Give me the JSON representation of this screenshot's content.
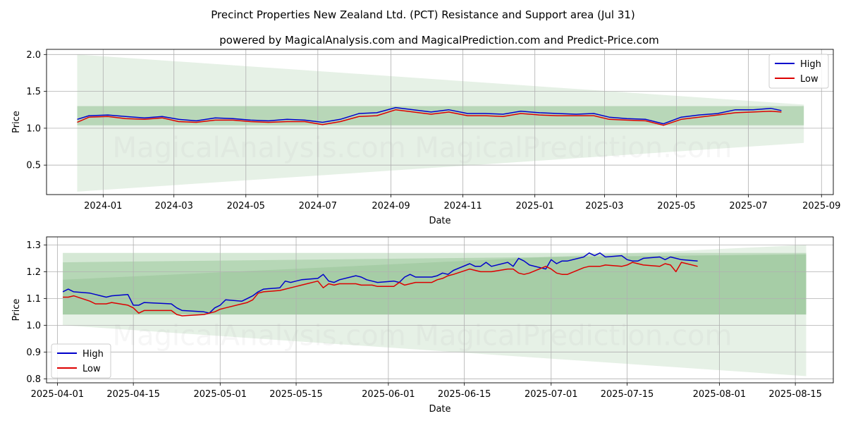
{
  "title": "Precinct Properties New Zealand Ltd. (PCT) Resistance and Support area (Jul 31)",
  "subtitle": "powered by MagicalAnalysis.com and MagicalPrediction.com and Predict-Price.com",
  "watermark": "MagicalAnalysis.com   MagicalPrediction.com",
  "colors": {
    "high": "#0000cc",
    "low": "#dd0000",
    "band": "#2e8b2e"
  },
  "chart_data": [
    {
      "type": "line",
      "xlabel": "Date",
      "ylabel": "Price",
      "ylim": [
        0.1,
        2.07
      ],
      "xlim": [
        "2023-11-14",
        "2025-09-11"
      ],
      "yticks": [
        "0.5",
        "1.0",
        "1.5",
        "2.0"
      ],
      "ytick_values": [
        0.5,
        1.0,
        1.5,
        2.0
      ],
      "xticks": [
        "2024-01",
        "2024-03",
        "2024-05",
        "2024-07",
        "2024-09",
        "2024-11",
        "2025-01",
        "2025-03",
        "2025-05",
        "2025-07",
        "2025-09"
      ],
      "xtick_dates": [
        "2024-01-01",
        "2024-03-01",
        "2024-05-01",
        "2024-07-01",
        "2024-09-01",
        "2024-11-01",
        "2025-01-01",
        "2025-03-01",
        "2025-05-01",
        "2025-07-01",
        "2025-09-01"
      ],
      "legend": "top-right",
      "grid": true,
      "bands": [
        {
          "x": [
            "2023-12-10",
            "2025-08-17"
          ],
          "upper": [
            2.0,
            1.32
          ],
          "lower": [
            0.14,
            0.8
          ],
          "opacity": 0.12
        },
        {
          "x": [
            "2023-12-10",
            "2025-08-17"
          ],
          "upper": [
            1.3,
            1.3
          ],
          "lower": [
            1.04,
            1.04
          ],
          "opacity": 0.25
        }
      ],
      "series": [
        {
          "name": "High",
          "x": [
            "2023-12-10",
            "2023-12-20",
            "2024-01-05",
            "2024-01-20",
            "2024-02-05",
            "2024-02-20",
            "2024-03-05",
            "2024-03-20",
            "2024-04-05",
            "2024-04-20",
            "2024-05-05",
            "2024-05-20",
            "2024-06-05",
            "2024-06-20",
            "2024-07-05",
            "2024-07-20",
            "2024-08-05",
            "2024-08-20",
            "2024-09-05",
            "2024-09-20",
            "2024-10-05",
            "2024-10-20",
            "2024-11-05",
            "2024-11-20",
            "2024-12-05",
            "2024-12-20",
            "2025-01-05",
            "2025-01-20",
            "2025-02-05",
            "2025-02-20",
            "2025-03-05",
            "2025-03-20",
            "2025-04-05",
            "2025-04-20",
            "2025-05-05",
            "2025-05-20",
            "2025-06-05",
            "2025-06-20",
            "2025-07-05",
            "2025-07-20",
            "2025-07-29"
          ],
          "values": [
            1.12,
            1.17,
            1.18,
            1.16,
            1.14,
            1.16,
            1.12,
            1.1,
            1.14,
            1.13,
            1.11,
            1.1,
            1.12,
            1.11,
            1.08,
            1.12,
            1.2,
            1.21,
            1.28,
            1.25,
            1.22,
            1.25,
            1.2,
            1.2,
            1.19,
            1.23,
            1.21,
            1.2,
            1.19,
            1.2,
            1.15,
            1.13,
            1.12,
            1.06,
            1.15,
            1.18,
            1.2,
            1.25,
            1.25,
            1.27,
            1.24
          ]
        },
        {
          "name": "Low",
          "x": [
            "2023-12-10",
            "2023-12-20",
            "2024-01-05",
            "2024-01-20",
            "2024-02-05",
            "2024-02-20",
            "2024-03-05",
            "2024-03-20",
            "2024-04-05",
            "2024-04-20",
            "2024-05-05",
            "2024-05-20",
            "2024-06-05",
            "2024-06-20",
            "2024-07-05",
            "2024-07-20",
            "2024-08-05",
            "2024-08-20",
            "2024-09-05",
            "2024-09-20",
            "2024-10-05",
            "2024-10-20",
            "2024-11-05",
            "2024-11-20",
            "2024-12-05",
            "2024-12-20",
            "2025-01-05",
            "2025-01-20",
            "2025-02-05",
            "2025-02-20",
            "2025-03-05",
            "2025-03-20",
            "2025-04-05",
            "2025-04-20",
            "2025-05-05",
            "2025-05-20",
            "2025-06-05",
            "2025-06-20",
            "2025-07-05",
            "2025-07-20",
            "2025-07-29"
          ],
          "values": [
            1.08,
            1.15,
            1.16,
            1.13,
            1.12,
            1.14,
            1.09,
            1.08,
            1.11,
            1.11,
            1.09,
            1.08,
            1.09,
            1.09,
            1.05,
            1.09,
            1.16,
            1.17,
            1.25,
            1.22,
            1.19,
            1.22,
            1.17,
            1.17,
            1.16,
            1.2,
            1.18,
            1.17,
            1.17,
            1.17,
            1.12,
            1.11,
            1.1,
            1.04,
            1.12,
            1.15,
            1.18,
            1.21,
            1.22,
            1.23,
            1.22
          ]
        }
      ]
    },
    {
      "type": "line",
      "xlabel": "Date",
      "ylabel": "Price",
      "ylim": [
        0.785,
        1.33
      ],
      "xlim": [
        "2025-03-30",
        "2025-08-22"
      ],
      "yticks": [
        "0.8",
        "0.9",
        "1.0",
        "1.1",
        "1.2",
        "1.3"
      ],
      "ytick_values": [
        0.8,
        0.9,
        1.0,
        1.1,
        1.2,
        1.3
      ],
      "xticks": [
        "2025-04-01",
        "2025-04-15",
        "2025-05-01",
        "2025-05-15",
        "2025-06-01",
        "2025-06-15",
        "2025-07-01",
        "2025-07-15",
        "2025-08-01",
        "2025-08-15"
      ],
      "xtick_dates": [
        "2025-04-01",
        "2025-04-15",
        "2025-05-01",
        "2025-05-15",
        "2025-06-01",
        "2025-06-15",
        "2025-07-01",
        "2025-07-15",
        "2025-08-01",
        "2025-08-15"
      ],
      "legend": "bottom-left",
      "grid": true,
      "bands": [
        {
          "x": [
            "2025-04-02",
            "2025-08-17"
          ],
          "upper": [
            1.17,
            1.3
          ],
          "lower": [
            1.0,
            0.81
          ],
          "opacity": 0.12
        },
        {
          "x": [
            "2025-04-02",
            "2025-08-17"
          ],
          "upper": [
            1.27,
            1.27
          ],
          "lower": [
            1.04,
            1.04
          ],
          "opacity": 0.2
        },
        {
          "x": [
            "2025-04-02",
            "2025-08-17"
          ],
          "upper": [
            1.235,
            1.265
          ],
          "lower": [
            1.04,
            1.04
          ],
          "opacity": 0.18
        }
      ],
      "series": [
        {
          "name": "High",
          "x": [
            "2025-04-02",
            "2025-04-03",
            "2025-04-04",
            "2025-04-07",
            "2025-04-08",
            "2025-04-09",
            "2025-04-10",
            "2025-04-11",
            "2025-04-14",
            "2025-04-15",
            "2025-04-16",
            "2025-04-17",
            "2025-04-22",
            "2025-04-23",
            "2025-04-24",
            "2025-04-28",
            "2025-04-29",
            "2025-04-30",
            "2025-05-01",
            "2025-05-02",
            "2025-05-05",
            "2025-05-06",
            "2025-05-07",
            "2025-05-08",
            "2025-05-09",
            "2025-05-12",
            "2025-05-13",
            "2025-05-14",
            "2025-05-15",
            "2025-05-16",
            "2025-05-19",
            "2025-05-20",
            "2025-05-21",
            "2025-05-22",
            "2025-05-23",
            "2025-05-26",
            "2025-05-27",
            "2025-05-28",
            "2025-05-29",
            "2025-05-30",
            "2025-06-02",
            "2025-06-03",
            "2025-06-04",
            "2025-06-05",
            "2025-06-06",
            "2025-06-09",
            "2025-06-10",
            "2025-06-11",
            "2025-06-12",
            "2025-06-13",
            "2025-06-16",
            "2025-06-17",
            "2025-06-18",
            "2025-06-19",
            "2025-06-20",
            "2025-06-23",
            "2025-06-24",
            "2025-06-25",
            "2025-06-26",
            "2025-06-27",
            "2025-06-30",
            "2025-07-01",
            "2025-07-02",
            "2025-07-03",
            "2025-07-04",
            "2025-07-07",
            "2025-07-08",
            "2025-07-09",
            "2025-07-10",
            "2025-07-11",
            "2025-07-14",
            "2025-07-15",
            "2025-07-16",
            "2025-07-17",
            "2025-07-18",
            "2025-07-21",
            "2025-07-22",
            "2025-07-23",
            "2025-07-24",
            "2025-07-25",
            "2025-07-28"
          ],
          "values": [
            1.125,
            1.135,
            1.125,
            1.12,
            1.115,
            1.11,
            1.105,
            1.11,
            1.115,
            1.075,
            1.075,
            1.085,
            1.08,
            1.065,
            1.055,
            1.05,
            1.045,
            1.065,
            1.075,
            1.095,
            1.09,
            1.1,
            1.11,
            1.125,
            1.135,
            1.14,
            1.165,
            1.16,
            1.165,
            1.17,
            1.175,
            1.19,
            1.165,
            1.16,
            1.17,
            1.185,
            1.18,
            1.17,
            1.165,
            1.16,
            1.165,
            1.16,
            1.18,
            1.19,
            1.18,
            1.18,
            1.185,
            1.195,
            1.19,
            1.205,
            1.23,
            1.22,
            1.22,
            1.235,
            1.22,
            1.235,
            1.22,
            1.25,
            1.24,
            1.225,
            1.21,
            1.245,
            1.23,
            1.24,
            1.24,
            1.255,
            1.27,
            1.26,
            1.27,
            1.255,
            1.26,
            1.245,
            1.24,
            1.24,
            1.25,
            1.255,
            1.245,
            1.255,
            1.25,
            1.245,
            1.24
          ]
        },
        {
          "name": "Low",
          "x": [
            "2025-04-02",
            "2025-04-03",
            "2025-04-04",
            "2025-04-07",
            "2025-04-08",
            "2025-04-09",
            "2025-04-10",
            "2025-04-11",
            "2025-04-14",
            "2025-04-15",
            "2025-04-16",
            "2025-04-17",
            "2025-04-22",
            "2025-04-23",
            "2025-04-24",
            "2025-04-28",
            "2025-04-29",
            "2025-04-30",
            "2025-05-01",
            "2025-05-02",
            "2025-05-05",
            "2025-05-06",
            "2025-05-07",
            "2025-05-08",
            "2025-05-09",
            "2025-05-12",
            "2025-05-13",
            "2025-05-14",
            "2025-05-15",
            "2025-05-16",
            "2025-05-19",
            "2025-05-20",
            "2025-05-21",
            "2025-05-22",
            "2025-05-23",
            "2025-05-26",
            "2025-05-27",
            "2025-05-28",
            "2025-05-29",
            "2025-05-30",
            "2025-06-02",
            "2025-06-03",
            "2025-06-04",
            "2025-06-05",
            "2025-06-06",
            "2025-06-09",
            "2025-06-10",
            "2025-06-11",
            "2025-06-12",
            "2025-06-13",
            "2025-06-16",
            "2025-06-17",
            "2025-06-18",
            "2025-06-19",
            "2025-06-20",
            "2025-06-23",
            "2025-06-24",
            "2025-06-25",
            "2025-06-26",
            "2025-06-27",
            "2025-06-30",
            "2025-07-01",
            "2025-07-02",
            "2025-07-03",
            "2025-07-04",
            "2025-07-07",
            "2025-07-08",
            "2025-07-09",
            "2025-07-10",
            "2025-07-11",
            "2025-07-14",
            "2025-07-15",
            "2025-07-16",
            "2025-07-17",
            "2025-07-18",
            "2025-07-21",
            "2025-07-22",
            "2025-07-23",
            "2025-07-24",
            "2025-07-25",
            "2025-07-28"
          ],
          "values": [
            1.105,
            1.105,
            1.11,
            1.09,
            1.08,
            1.08,
            1.08,
            1.085,
            1.075,
            1.065,
            1.045,
            1.055,
            1.055,
            1.04,
            1.035,
            1.04,
            1.045,
            1.05,
            1.06,
            1.065,
            1.08,
            1.085,
            1.095,
            1.12,
            1.125,
            1.13,
            1.135,
            1.14,
            1.145,
            1.15,
            1.165,
            1.14,
            1.155,
            1.15,
            1.155,
            1.155,
            1.15,
            1.15,
            1.15,
            1.145,
            1.145,
            1.16,
            1.15,
            1.155,
            1.16,
            1.16,
            1.17,
            1.175,
            1.185,
            1.19,
            1.21,
            1.205,
            1.2,
            1.2,
            1.2,
            1.21,
            1.21,
            1.195,
            1.19,
            1.195,
            1.22,
            1.21,
            1.195,
            1.19,
            1.19,
            1.215,
            1.22,
            1.22,
            1.22,
            1.225,
            1.22,
            1.225,
            1.235,
            1.23,
            1.225,
            1.22,
            1.23,
            1.225,
            1.2,
            1.235,
            1.22
          ]
        }
      ]
    }
  ]
}
